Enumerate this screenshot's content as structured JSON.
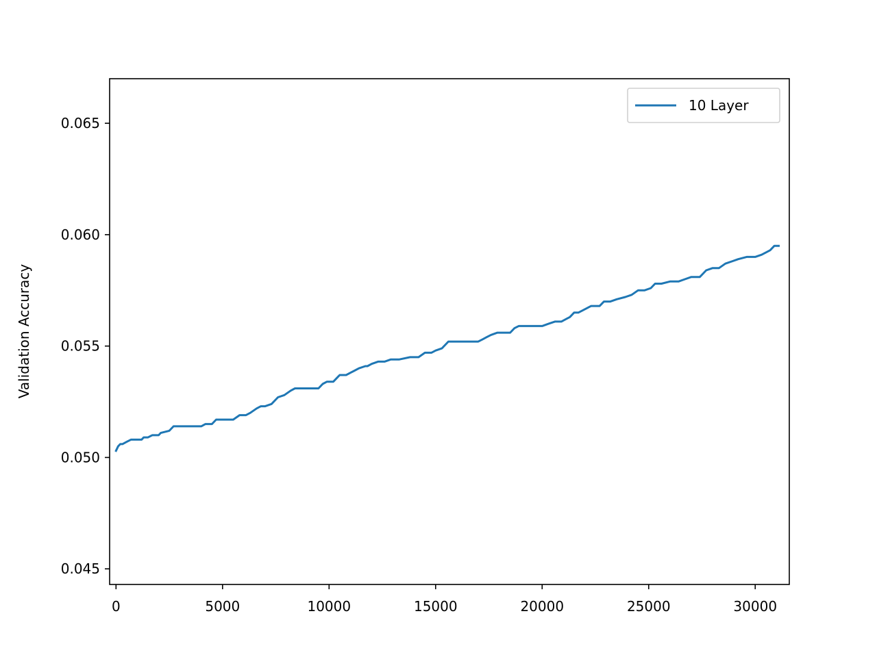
{
  "chart_data": {
    "type": "line",
    "title": "",
    "xlabel": "",
    "ylabel": "Validation Accuracy",
    "xlim": [
      -300,
      31600
    ],
    "ylim": [
      0.0443,
      0.067
    ],
    "x_ticks": [
      0,
      5000,
      10000,
      15000,
      20000,
      25000,
      30000
    ],
    "x_tick_labels": [
      "0",
      "5000",
      "10000",
      "15000",
      "20000",
      "25000",
      "30000"
    ],
    "y_ticks": [
      0.045,
      0.05,
      0.055,
      0.06,
      0.065
    ],
    "y_tick_labels": [
      "0.045",
      "0.050",
      "0.055",
      "0.060",
      "0.065"
    ],
    "grid": false,
    "legend": {
      "position": "top-right"
    },
    "series": [
      {
        "name": "10 Layer",
        "color": "#1f77b4",
        "x": [
          0,
          100,
          200,
          300,
          500,
          700,
          900,
          1200,
          1300,
          1500,
          1700,
          2000,
          2100,
          2500,
          2700,
          3500,
          4000,
          4200,
          4500,
          4700,
          5000,
          5500,
          5800,
          6100,
          6300,
          6600,
          6800,
          7000,
          7300,
          7600,
          7900,
          8200,
          8400,
          8700,
          9000,
          9500,
          9700,
          9900,
          10200,
          10400,
          10500,
          10800,
          11000,
          11200,
          11400,
          11700,
          11800,
          12000,
          12300,
          12600,
          12900,
          13300,
          13800,
          14200,
          14500,
          14800,
          15000,
          15300,
          15600,
          16000,
          16500,
          17000,
          17200,
          17400,
          17600,
          17900,
          18200,
          18500,
          18700,
          18900,
          19200,
          19600,
          20000,
          20300,
          20600,
          20900,
          21100,
          21300,
          21500,
          21700,
          21900,
          22100,
          22300,
          22700,
          22900,
          23200,
          23500,
          23900,
          24200,
          24500,
          24800,
          25100,
          25300,
          25600,
          26000,
          26400,
          26700,
          27000,
          27400,
          27500,
          27700,
          28000,
          28300,
          28600,
          28900,
          29200,
          29600,
          30000,
          30300,
          30500,
          30700,
          30900,
          31100
        ],
        "y": [
          0.0503,
          0.0505,
          0.0506,
          0.0506,
          0.0507,
          0.0508,
          0.0508,
          0.0508,
          0.0509,
          0.0509,
          0.051,
          0.051,
          0.0511,
          0.0512,
          0.0514,
          0.0514,
          0.0514,
          0.0515,
          0.0515,
          0.0517,
          0.0517,
          0.0517,
          0.0519,
          0.0519,
          0.052,
          0.0522,
          0.0523,
          0.0523,
          0.0524,
          0.0527,
          0.0528,
          0.053,
          0.0531,
          0.0531,
          0.0531,
          0.0531,
          0.0533,
          0.0534,
          0.0534,
          0.0536,
          0.0537,
          0.0537,
          0.0538,
          0.0539,
          0.054,
          0.0541,
          0.0541,
          0.0542,
          0.0543,
          0.0543,
          0.0544,
          0.0544,
          0.0545,
          0.0545,
          0.0547,
          0.0547,
          0.0548,
          0.0549,
          0.0552,
          0.0552,
          0.0552,
          0.0552,
          0.0553,
          0.0554,
          0.0555,
          0.0556,
          0.0556,
          0.0556,
          0.0558,
          0.0559,
          0.0559,
          0.0559,
          0.0559,
          0.056,
          0.0561,
          0.0561,
          0.0562,
          0.0563,
          0.0565,
          0.0565,
          0.0566,
          0.0567,
          0.0568,
          0.0568,
          0.057,
          0.057,
          0.0571,
          0.0572,
          0.0573,
          0.0575,
          0.0575,
          0.0576,
          0.0578,
          0.0578,
          0.0579,
          0.0579,
          0.058,
          0.0581,
          0.0581,
          0.0582,
          0.0584,
          0.0585,
          0.0585,
          0.0587,
          0.0588,
          0.0589,
          0.059,
          0.059,
          0.0591,
          0.0592,
          0.0593,
          0.0595,
          0.0595
        ]
      }
    ]
  }
}
